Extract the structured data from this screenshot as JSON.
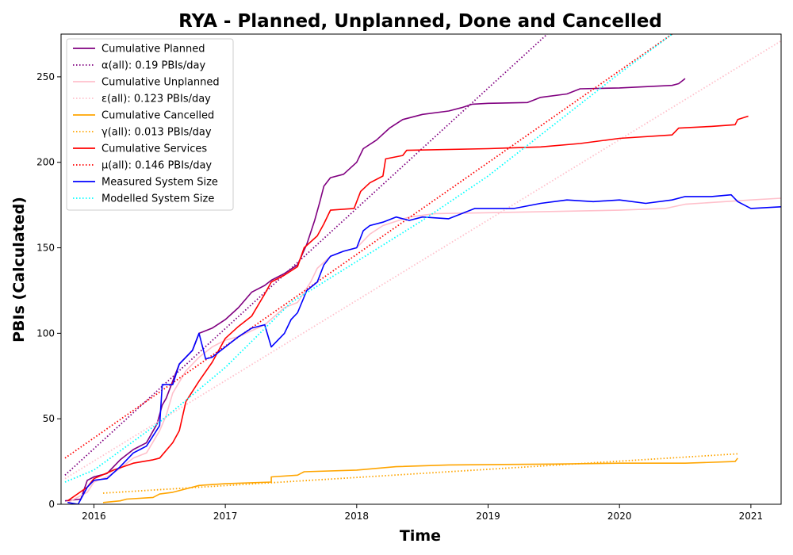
{
  "chart_data": {
    "type": "line",
    "title": "RYA - Planned, Unplanned, Done  and Cancelled",
    "xlabel": "Time",
    "ylabel": "PBIs (Calculated)",
    "xlim": [
      2015.75,
      2021.23
    ],
    "ylim": [
      0,
      275
    ],
    "x_ticks": [
      2016,
      2017,
      2018,
      2019,
      2020,
      2021
    ],
    "y_ticks": [
      0,
      50,
      100,
      150,
      200,
      250
    ],
    "grid": false,
    "legend_position": "top-left",
    "series": [
      {
        "name": "Cumulative Planned",
        "color": "#800080",
        "style": "solid",
        "points": [
          [
            2015.78,
            2
          ],
          [
            2015.9,
            3
          ],
          [
            2015.95,
            14
          ],
          [
            2016.0,
            16
          ],
          [
            2016.1,
            18
          ],
          [
            2016.2,
            26
          ],
          [
            2016.3,
            32
          ],
          [
            2016.4,
            36
          ],
          [
            2016.48,
            47
          ],
          [
            2016.52,
            58
          ],
          [
            2016.55,
            62
          ],
          [
            2016.6,
            72
          ],
          [
            2016.65,
            82
          ],
          [
            2016.75,
            90
          ],
          [
            2016.8,
            100
          ],
          [
            2016.9,
            103
          ],
          [
            2017.0,
            108
          ],
          [
            2017.1,
            115
          ],
          [
            2017.2,
            124
          ],
          [
            2017.3,
            128
          ],
          [
            2017.35,
            131
          ],
          [
            2017.45,
            135
          ],
          [
            2017.55,
            140
          ],
          [
            2017.62,
            152
          ],
          [
            2017.68,
            166
          ],
          [
            2017.72,
            177
          ],
          [
            2017.75,
            186
          ],
          [
            2017.8,
            191
          ],
          [
            2017.9,
            193
          ],
          [
            2018.0,
            200
          ],
          [
            2018.05,
            208
          ],
          [
            2018.15,
            213
          ],
          [
            2018.25,
            220
          ],
          [
            2018.35,
            225
          ],
          [
            2018.5,
            228
          ],
          [
            2018.7,
            230
          ],
          [
            2018.8,
            232
          ],
          [
            2018.88,
            234
          ],
          [
            2019.0,
            234.5
          ],
          [
            2019.3,
            235
          ],
          [
            2019.4,
            238
          ],
          [
            2019.6,
            240
          ],
          [
            2019.7,
            243
          ],
          [
            2020.0,
            243.5
          ],
          [
            2020.4,
            245
          ],
          [
            2020.45,
            246
          ],
          [
            2020.5,
            249
          ]
        ]
      },
      {
        "name": "α(all): 0.19 PBIs/day",
        "color": "#800080",
        "style": "dotted",
        "points": [
          [
            2015.78,
            17
          ],
          [
            2019.45,
            275
          ]
        ]
      },
      {
        "name": "Cumulative Unplanned",
        "color": "#ffc0cb",
        "style": "solid",
        "points": [
          [
            2015.8,
            1
          ],
          [
            2015.95,
            7
          ],
          [
            2016.0,
            13
          ],
          [
            2016.1,
            16
          ],
          [
            2016.2,
            21
          ],
          [
            2016.3,
            27
          ],
          [
            2016.4,
            30
          ],
          [
            2016.5,
            43
          ],
          [
            2016.55,
            52
          ],
          [
            2016.6,
            65
          ],
          [
            2016.7,
            78
          ],
          [
            2016.8,
            86
          ],
          [
            2016.9,
            92
          ],
          [
            2017.0,
            96
          ],
          [
            2017.1,
            98
          ],
          [
            2017.3,
            105
          ],
          [
            2017.45,
            115
          ],
          [
            2017.55,
            118
          ],
          [
            2017.65,
            130
          ],
          [
            2017.7,
            138
          ],
          [
            2017.8,
            145
          ],
          [
            2017.9,
            148
          ],
          [
            2018.0,
            150
          ],
          [
            2018.1,
            158
          ],
          [
            2018.2,
            163
          ],
          [
            2018.4,
            168
          ],
          [
            2018.6,
            170
          ],
          [
            2019.0,
            170.5
          ],
          [
            2020.0,
            172
          ],
          [
            2020.35,
            173
          ],
          [
            2020.5,
            175.5
          ],
          [
            2020.8,
            177
          ],
          [
            2021.0,
            178
          ],
          [
            2021.23,
            179
          ]
        ]
      },
      {
        "name": "ε(all): 0.123 PBIs/day",
        "color": "#ffc0cb",
        "style": "dotted",
        "points": [
          [
            2015.78,
            15
          ],
          [
            2021.23,
            271
          ]
        ]
      },
      {
        "name": "Cumulative Cancelled",
        "color": "#ffa500",
        "style": "solid",
        "points": [
          [
            2016.07,
            1
          ],
          [
            2016.2,
            2
          ],
          [
            2016.25,
            3
          ],
          [
            2016.45,
            4
          ],
          [
            2016.5,
            6
          ],
          [
            2016.6,
            7
          ],
          [
            2016.7,
            9
          ],
          [
            2016.8,
            11
          ],
          [
            2017.0,
            12
          ],
          [
            2017.35,
            13
          ],
          [
            2017.35,
            16
          ],
          [
            2017.55,
            17
          ],
          [
            2017.6,
            19
          ],
          [
            2018.0,
            20
          ],
          [
            2018.3,
            22
          ],
          [
            2018.7,
            23
          ],
          [
            2019.5,
            23.5
          ],
          [
            2020.0,
            24
          ],
          [
            2020.5,
            24
          ],
          [
            2020.88,
            25
          ],
          [
            2020.9,
            27
          ]
        ]
      },
      {
        "name": "γ(all): 0.013 PBIs/day",
        "color": "#ffa500",
        "style": "dotted",
        "points": [
          [
            2016.07,
            6.5
          ],
          [
            2020.9,
            29.5
          ]
        ]
      },
      {
        "name": "Cumulative Services",
        "color": "#ff0000",
        "style": "solid",
        "points": [
          [
            2015.8,
            2
          ],
          [
            2015.95,
            10
          ],
          [
            2016.0,
            15
          ],
          [
            2016.15,
            20
          ],
          [
            2016.3,
            24
          ],
          [
            2016.45,
            26
          ],
          [
            2016.5,
            27
          ],
          [
            2016.6,
            36
          ],
          [
            2016.65,
            43
          ],
          [
            2016.7,
            60
          ],
          [
            2016.8,
            72
          ],
          [
            2016.9,
            83
          ],
          [
            2017.0,
            97
          ],
          [
            2017.1,
            104
          ],
          [
            2017.2,
            110
          ],
          [
            2017.3,
            123
          ],
          [
            2017.35,
            130
          ],
          [
            2017.45,
            134
          ],
          [
            2017.55,
            139
          ],
          [
            2017.6,
            150
          ],
          [
            2017.7,
            157
          ],
          [
            2017.75,
            164
          ],
          [
            2017.8,
            172
          ],
          [
            2017.98,
            173
          ],
          [
            2018.03,
            183
          ],
          [
            2018.1,
            188
          ],
          [
            2018.2,
            192
          ],
          [
            2018.22,
            202
          ],
          [
            2018.35,
            204
          ],
          [
            2018.38,
            207
          ],
          [
            2019.0,
            208
          ],
          [
            2019.4,
            209
          ],
          [
            2019.7,
            211
          ],
          [
            2020.0,
            214
          ],
          [
            2020.4,
            216
          ],
          [
            2020.45,
            220
          ],
          [
            2020.7,
            221
          ],
          [
            2020.88,
            222
          ],
          [
            2020.9,
            225
          ],
          [
            2020.98,
            227
          ]
        ]
      },
      {
        "name": "μ(all): 0.146 PBIs/day",
        "color": "#ff0000",
        "style": "dotted",
        "points": [
          [
            2015.78,
            27
          ],
          [
            2020.4,
            275
          ]
        ]
      },
      {
        "name": "Measured System Size",
        "color": "#0000ff",
        "style": "solid",
        "points": [
          [
            2015.8,
            1
          ],
          [
            2015.88,
            0
          ],
          [
            2015.95,
            10
          ],
          [
            2016.0,
            14
          ],
          [
            2016.1,
            15
          ],
          [
            2016.2,
            22
          ],
          [
            2016.3,
            30
          ],
          [
            2016.35,
            32
          ],
          [
            2016.4,
            34
          ],
          [
            2016.5,
            46
          ],
          [
            2016.52,
            70
          ],
          [
            2016.6,
            70
          ],
          [
            2016.65,
            82
          ],
          [
            2016.75,
            90
          ],
          [
            2016.8,
            100
          ],
          [
            2016.85,
            85
          ],
          [
            2016.9,
            86
          ],
          [
            2017.0,
            92
          ],
          [
            2017.1,
            98
          ],
          [
            2017.2,
            103
          ],
          [
            2017.3,
            105
          ],
          [
            2017.35,
            92
          ],
          [
            2017.45,
            100
          ],
          [
            2017.5,
            108
          ],
          [
            2017.55,
            112
          ],
          [
            2017.62,
            125
          ],
          [
            2017.7,
            130
          ],
          [
            2017.75,
            140
          ],
          [
            2017.8,
            145
          ],
          [
            2017.9,
            148
          ],
          [
            2018.0,
            150
          ],
          [
            2018.05,
            160
          ],
          [
            2018.1,
            163
          ],
          [
            2018.2,
            165
          ],
          [
            2018.3,
            168
          ],
          [
            2018.4,
            166
          ],
          [
            2018.5,
            168
          ],
          [
            2018.7,
            167
          ],
          [
            2018.9,
            173
          ],
          [
            2019.2,
            173
          ],
          [
            2019.4,
            176
          ],
          [
            2019.6,
            178
          ],
          [
            2019.8,
            177
          ],
          [
            2020.0,
            178
          ],
          [
            2020.2,
            176
          ],
          [
            2020.4,
            178
          ],
          [
            2020.5,
            180
          ],
          [
            2020.7,
            180
          ],
          [
            2020.85,
            181
          ],
          [
            2020.9,
            177
          ],
          [
            2021.0,
            173
          ],
          [
            2021.23,
            174
          ]
        ]
      },
      {
        "name": "Modelled System Size",
        "color": "#00ffff",
        "style": "dotted",
        "points": [
          [
            2015.78,
            13
          ],
          [
            2016.0,
            20
          ],
          [
            2016.5,
            48
          ],
          [
            2017.0,
            80
          ],
          [
            2017.5,
            118
          ],
          [
            2018.0,
            142
          ],
          [
            2018.5,
            166
          ],
          [
            2019.0,
            192
          ],
          [
            2019.5,
            222
          ],
          [
            2020.0,
            252
          ],
          [
            2020.4,
            275
          ]
        ]
      }
    ]
  }
}
